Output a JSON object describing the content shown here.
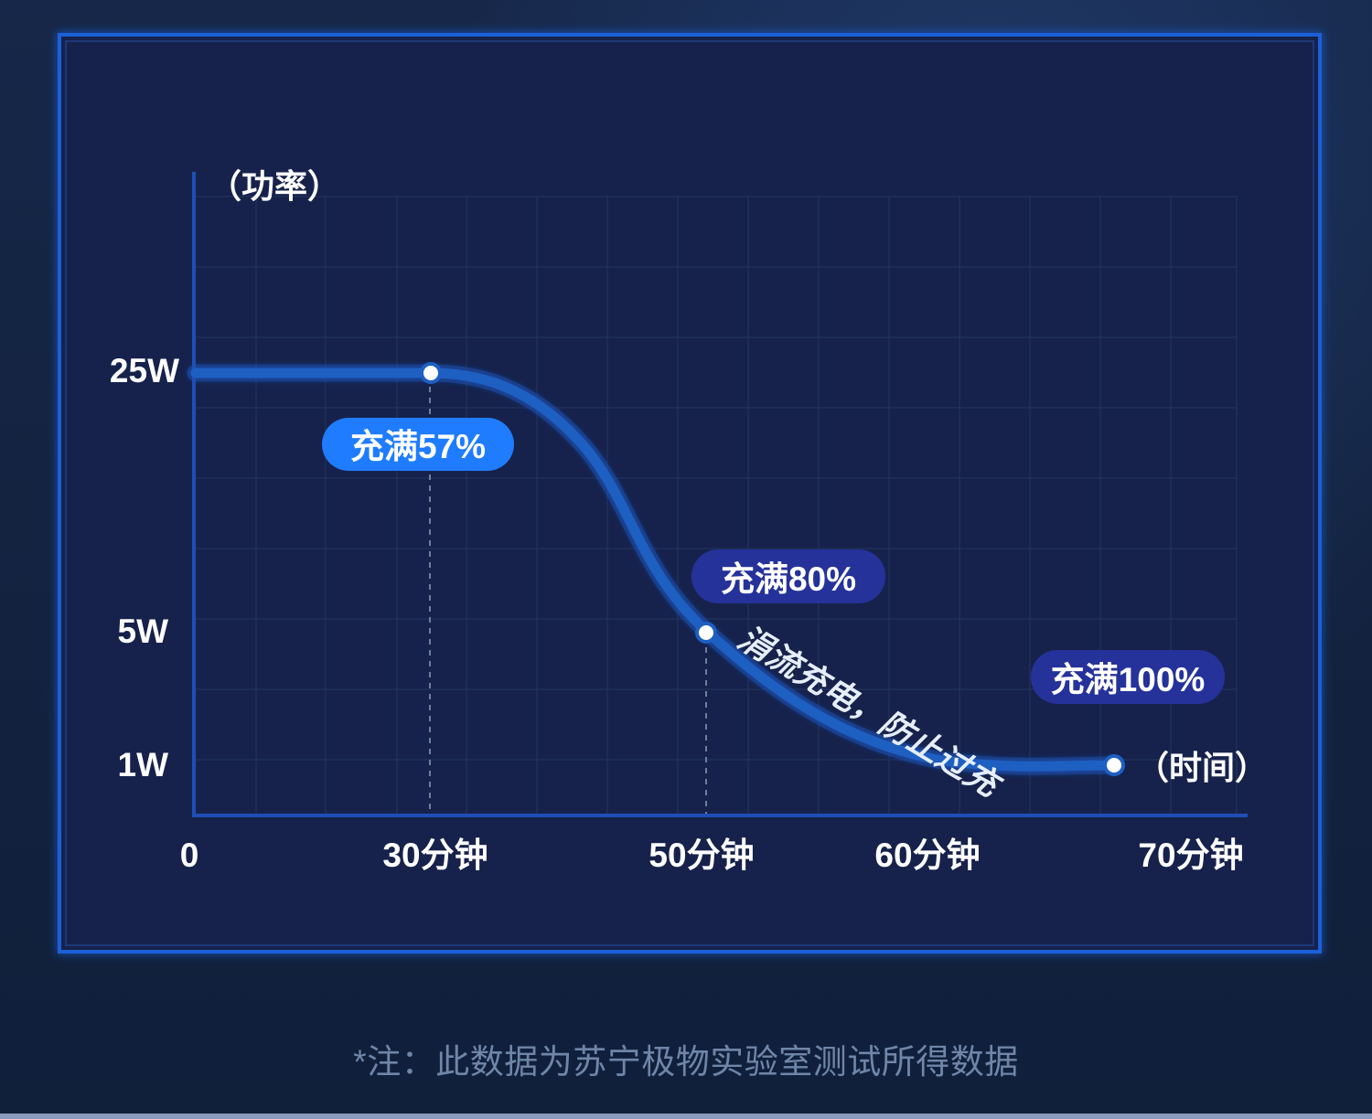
{
  "chart_data": {
    "type": "line",
    "ylabel": "（功率）",
    "xlabel": "（时间）",
    "y_ticks": [
      "25W",
      "5W",
      "1W"
    ],
    "y_tick_values": [
      25,
      5,
      1
    ],
    "x_ticks": [
      "0",
      "30分钟",
      "50分钟",
      "60分钟",
      "70分钟"
    ],
    "x_tick_values": [
      0,
      30,
      50,
      60,
      70
    ],
    "grid": true,
    "series": [
      {
        "x": [
          0,
          30,
          37,
          45,
          50,
          55,
          60,
          65,
          70
        ],
        "y": [
          25,
          25,
          20,
          9,
          5,
          3.3,
          1.6,
          1.1,
          1
        ]
      }
    ],
    "annotations": [
      {
        "label": "充满57%",
        "x": 30,
        "y": 25
      },
      {
        "label": "充满80%",
        "x": 50,
        "y": 5
      },
      {
        "label": "充满100%",
        "x": 70,
        "y": 1
      }
    ],
    "curve_label": "涓流充电，防止过充",
    "colors": {
      "curve": "#1e5fc2",
      "axis": "#1e4fb8",
      "frame": "#1c60d8",
      "callout_blue": "#1f7cff",
      "callout_navy": "#25329a"
    }
  },
  "footnote": "*注：此数据为苏宁极物实验室测试所得数据"
}
